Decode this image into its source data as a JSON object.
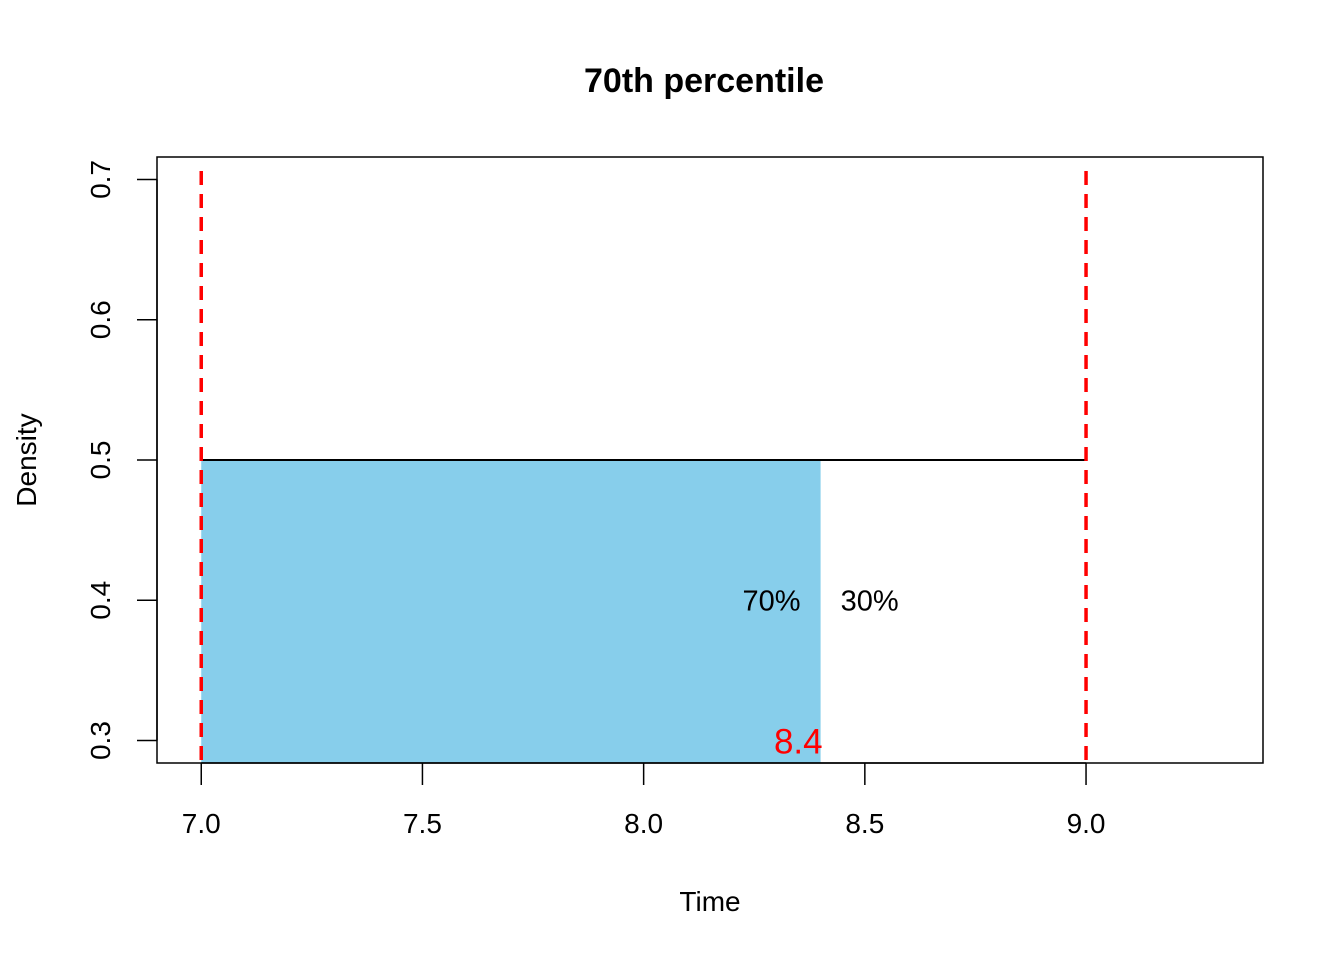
{
  "chart_data": {
    "type": "area",
    "title": "70th percentile",
    "xlabel": "Time",
    "ylabel": "Density",
    "xlim": [
      6.9,
      9.4
    ],
    "ylim": [
      0.284,
      0.716
    ],
    "x_ticks": [
      7.0,
      7.5,
      8.0,
      8.5,
      9.0
    ],
    "x_tick_labels": [
      "7.0",
      "7.5",
      "8.0",
      "8.5",
      "9.0"
    ],
    "y_ticks": [
      0.3,
      0.4,
      0.5,
      0.6,
      0.7
    ],
    "y_tick_labels": [
      "0.3",
      "0.4",
      "0.5",
      "0.6",
      "0.7"
    ],
    "density_curve": {
      "x": [
        7.0,
        9.0
      ],
      "y": 0.5
    },
    "shaded_region": {
      "x_start": 7.0,
      "x_end": 8.4,
      "y": 0.5,
      "color": "#87CEEB"
    },
    "reference_lines": {
      "x": [
        7.0,
        9.0
      ],
      "color": "#FF0000",
      "style": "dashed"
    },
    "annotations": [
      {
        "text": "70%",
        "x": 8.4,
        "y": 0.4,
        "align": "left-of"
      },
      {
        "text": "30%",
        "x": 8.4,
        "y": 0.4,
        "align": "right-of"
      },
      {
        "text": "8.4",
        "x": 8.4,
        "y": 0.3,
        "color": "#FF0000",
        "align": "left-of"
      }
    ],
    "grid": false,
    "legend": "none"
  }
}
